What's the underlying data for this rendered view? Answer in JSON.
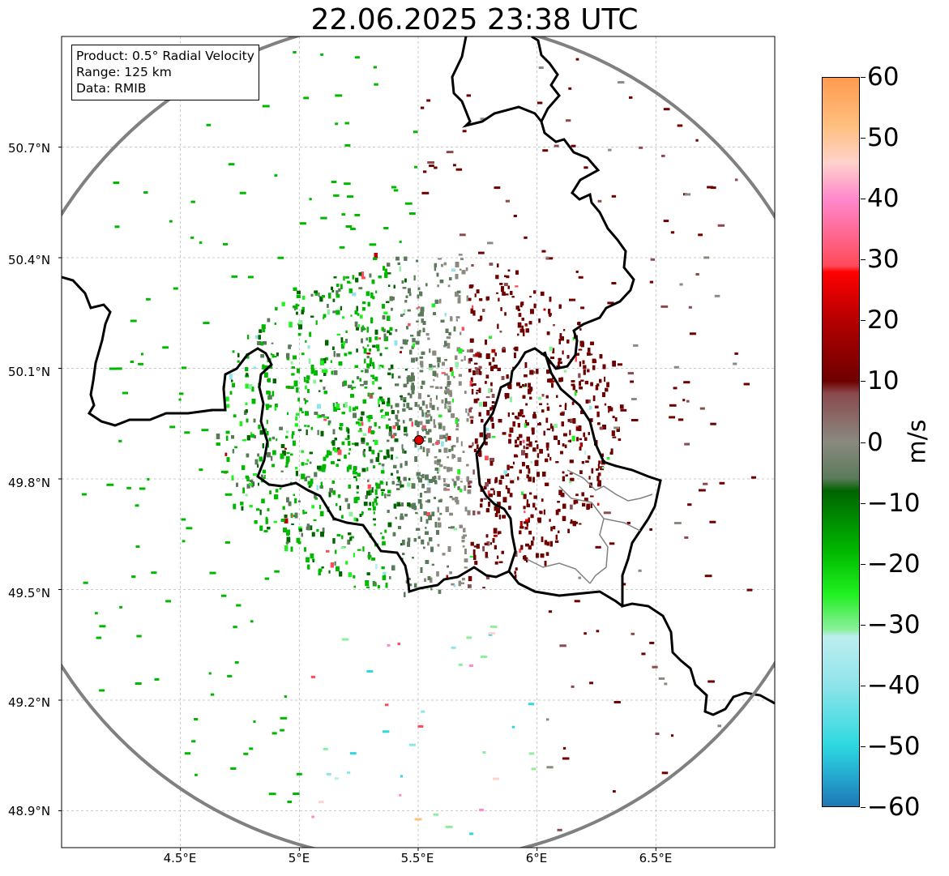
{
  "title": "22.06.2025 23:38 UTC",
  "info": {
    "product": "Product: 0.5° Radial Velocity",
    "range": "Range: 125 km",
    "data": "Data: RMIB"
  },
  "map": {
    "lon_range": [
      4.0,
      7.0
    ],
    "lat_range": [
      48.8,
      51.0
    ],
    "radar_site": {
      "lon": 5.505,
      "lat": 49.914
    },
    "range_ring_km": 125,
    "y_ticks": [
      "50.7°N",
      "50.4°N",
      "50.1°N",
      "49.8°N",
      "49.5°N",
      "49.2°N",
      "48.9°N"
    ],
    "y_tick_values": [
      50.7,
      50.4,
      50.1,
      49.8,
      49.5,
      49.2,
      48.9
    ],
    "x_ticks": [
      "4.5°E",
      "5°E",
      "5.5°E",
      "6°E",
      "6.5°E"
    ],
    "x_tick_values": [
      4.5,
      5.0,
      5.5,
      6.0,
      6.5
    ],
    "grid": true,
    "colors": {
      "border": "#000000",
      "admin_border": "#808080",
      "range_ring": "#808080",
      "radar_site": "#dd0000"
    }
  },
  "colorbar": {
    "label": "m/s",
    "min": -60,
    "max": 60,
    "ticks": [
      "60",
      "50",
      "40",
      "30",
      "20",
      "10",
      "0",
      "−10",
      "−20",
      "−30",
      "−40",
      "−50",
      "−60"
    ],
    "tick_values": [
      60,
      50,
      40,
      30,
      20,
      10,
      0,
      -10,
      -20,
      -30,
      -40,
      -50,
      -60
    ],
    "stops": [
      {
        "v": -60,
        "c": "#1f77b4"
      },
      {
        "v": -55,
        "c": "#25a9d0"
      },
      {
        "v": -50,
        "c": "#2ed8e0"
      },
      {
        "v": -40,
        "c": "#8fe4ea"
      },
      {
        "v": -32,
        "c": "#bdeef0"
      },
      {
        "v": -31,
        "c": "#8cf09e"
      },
      {
        "v": -25,
        "c": "#1ff01f"
      },
      {
        "v": -18,
        "c": "#00b800"
      },
      {
        "v": -8,
        "c": "#006400"
      },
      {
        "v": -6,
        "c": "#5a7a5a"
      },
      {
        "v": 0,
        "c": "#8a8a80"
      },
      {
        "v": 8,
        "c": "#8a4a4e"
      },
      {
        "v": 10,
        "c": "#6e0000"
      },
      {
        "v": 20,
        "c": "#b40000"
      },
      {
        "v": 28,
        "c": "#ff0000"
      },
      {
        "v": 29,
        "c": "#ff4a5a"
      },
      {
        "v": 40,
        "c": "#ff88cc"
      },
      {
        "v": 46,
        "c": "#ffd2cc"
      },
      {
        "v": 52,
        "c": "#ffc080"
      },
      {
        "v": 60,
        "c": "#ff9a50"
      }
    ]
  }
}
